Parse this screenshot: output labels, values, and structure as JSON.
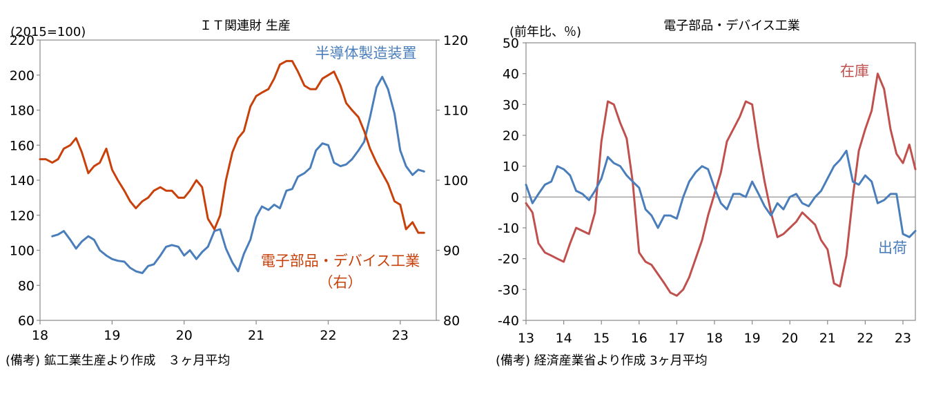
{
  "chart_data": [
    {
      "type": "line",
      "title": "ＩＴ関連財 生産",
      "unit_left": "(2015=100)",
      "note": "(備考) 鉱工業生産より作成　３ヶ月平均",
      "xticks": [
        "18",
        "19",
        "20",
        "21",
        "22",
        "23"
      ],
      "yticks_left": [
        "220",
        "200",
        "180",
        "160",
        "140",
        "120",
        "100",
        "80",
        "60"
      ],
      "yticks_right": [
        "120",
        "110",
        "100",
        "90",
        "80"
      ],
      "ylim_left": [
        60,
        220
      ],
      "ylim_right": [
        80,
        120
      ],
      "xlim": [
        2018.0,
        2023.5
      ],
      "colors": {
        "blue": "#4a7ebb",
        "red": "#c8410a",
        "axis": "#888888"
      },
      "series": [
        {
          "name": "半導体製造装置",
          "axis": "left",
          "color": "#4a7ebb",
          "x": [
            2018.17,
            2018.25,
            2018.33,
            2018.42,
            2018.5,
            2018.58,
            2018.67,
            2018.75,
            2018.83,
            2018.92,
            2019.0,
            2019.08,
            2019.17,
            2019.25,
            2019.33,
            2019.42,
            2019.5,
            2019.58,
            2019.67,
            2019.75,
            2019.83,
            2019.92,
            2020.0,
            2020.08,
            2020.17,
            2020.25,
            2020.33,
            2020.42,
            2020.5,
            2020.58,
            2020.67,
            2020.75,
            2020.83,
            2020.92,
            2021.0,
            2021.08,
            2021.17,
            2021.25,
            2021.33,
            2021.42,
            2021.5,
            2021.58,
            2021.67,
            2021.75,
            2021.83,
            2021.92,
            2022.0,
            2022.08,
            2022.17,
            2022.25,
            2022.33,
            2022.42,
            2022.5,
            2022.58,
            2022.67,
            2022.75,
            2022.83,
            2022.92,
            2023.0,
            2023.08,
            2023.17,
            2023.25,
            2023.33
          ],
          "values": [
            108,
            109,
            111,
            106,
            101,
            105,
            108,
            106,
            100,
            97,
            95,
            94,
            93.5,
            90,
            88,
            87,
            91,
            92,
            97,
            102,
            103,
            102,
            97,
            100,
            95,
            99,
            102,
            111,
            112,
            101,
            93,
            88,
            98,
            106,
            119,
            125,
            123,
            126,
            124,
            134,
            135,
            142,
            144,
            147,
            157,
            161,
            160,
            150,
            148,
            149,
            152,
            157,
            162,
            176,
            193,
            199,
            192,
            178,
            157,
            148,
            143,
            146,
            145
          ]
        },
        {
          "name": "電子部品・デバイス工業",
          "name_note": "（右）",
          "axis": "right",
          "color": "#c8410a",
          "x": [
            2018.0,
            2018.08,
            2018.17,
            2018.25,
            2018.33,
            2018.42,
            2018.5,
            2018.58,
            2018.67,
            2018.75,
            2018.83,
            2018.92,
            2019.0,
            2019.08,
            2019.17,
            2019.25,
            2019.33,
            2019.42,
            2019.5,
            2019.58,
            2019.67,
            2019.75,
            2019.83,
            2019.92,
            2020.0,
            2020.08,
            2020.17,
            2020.25,
            2020.33,
            2020.42,
            2020.5,
            2020.58,
            2020.67,
            2020.75,
            2020.83,
            2020.92,
            2021.0,
            2021.08,
            2021.17,
            2021.25,
            2021.33,
            2021.42,
            2021.5,
            2021.58,
            2021.67,
            2021.75,
            2021.83,
            2021.92,
            2022.0,
            2022.08,
            2022.17,
            2022.25,
            2022.33,
            2022.42,
            2022.5,
            2022.58,
            2022.67,
            2022.75,
            2022.83,
            2022.92,
            2023.0,
            2023.08,
            2023.17,
            2023.25,
            2023.33
          ],
          "values": [
            103,
            103,
            102.5,
            103,
            104.5,
            105,
            106,
            104,
            101,
            102,
            102.5,
            104.5,
            101.5,
            100,
            98.5,
            97,
            96,
            97,
            97.5,
            98.5,
            99,
            98.5,
            98.5,
            97.5,
            97.5,
            98.5,
            100,
            99,
            94.5,
            93,
            95,
            100,
            104,
            106,
            107,
            110.5,
            112,
            112.5,
            113,
            114.5,
            116.5,
            117,
            117,
            115.5,
            113.5,
            113,
            113,
            114.5,
            115,
            115.5,
            113.5,
            111,
            110,
            109,
            107,
            104.5,
            102.5,
            101,
            99.5,
            97,
            96.5,
            93,
            94,
            92.5,
            92.5
          ]
        }
      ]
    },
    {
      "type": "line",
      "title": "電子部品・デバイス工業",
      "unit_left": "(前年比、％)",
      "note": "(備考) 経済産業省より作成 3ヶ月平均",
      "xticks": [
        "13",
        "14",
        "15",
        "16",
        "17",
        "18",
        "19",
        "20",
        "21",
        "22",
        "23"
      ],
      "yticks_left": [
        "50",
        "40",
        "30",
        "20",
        "10",
        "0",
        "-10",
        "-20",
        "-30",
        "-40"
      ],
      "ylim_left": [
        -40,
        50
      ],
      "xlim": [
        2013.0,
        2023.33
      ],
      "colors": {
        "blue": "#4a7ebb",
        "red": "#c0504d",
        "zero": "#888888"
      },
      "series": [
        {
          "name": "在庫",
          "color": "#c0504d",
          "x": [
            2013.0,
            2013.17,
            2013.33,
            2013.5,
            2013.67,
            2013.83,
            2014.0,
            2014.17,
            2014.33,
            2014.5,
            2014.67,
            2014.83,
            2015.0,
            2015.17,
            2015.33,
            2015.5,
            2015.67,
            2015.83,
            2016.0,
            2016.17,
            2016.33,
            2016.5,
            2016.67,
            2016.83,
            2017.0,
            2017.17,
            2017.33,
            2017.5,
            2017.67,
            2017.83,
            2018.0,
            2018.17,
            2018.33,
            2018.5,
            2018.67,
            2018.83,
            2019.0,
            2019.17,
            2019.33,
            2019.5,
            2019.67,
            2019.83,
            2020.0,
            2020.17,
            2020.33,
            2020.5,
            2020.67,
            2020.83,
            2021.0,
            2021.17,
            2021.33,
            2021.5,
            2021.67,
            2021.83,
            2022.0,
            2022.17,
            2022.33,
            2022.5,
            2022.67,
            2022.83,
            2023.0,
            2023.17,
            2023.33
          ],
          "values": [
            -2,
            -5,
            -15,
            -18,
            -19,
            -20,
            -21,
            -15,
            -10,
            -11,
            -12,
            -5,
            18,
            31,
            30,
            24,
            19,
            5,
            -18,
            -21,
            -22,
            -25,
            -28,
            -31,
            -32,
            -30,
            -26,
            -20,
            -14,
            -6,
            1,
            8,
            18,
            22,
            26,
            31,
            30,
            16,
            5,
            -5,
            -13,
            -12,
            -10,
            -8,
            -5,
            -7,
            -9,
            -14,
            -17,
            -28,
            -29,
            -19,
            0,
            15,
            22,
            28,
            40,
            35,
            22,
            14,
            11,
            17,
            9
          ]
        },
        {
          "name": "出荷",
          "color": "#4a7ebb",
          "x": [
            2013.0,
            2013.17,
            2013.33,
            2013.5,
            2013.67,
            2013.83,
            2014.0,
            2014.17,
            2014.33,
            2014.5,
            2014.67,
            2014.83,
            2015.0,
            2015.17,
            2015.33,
            2015.5,
            2015.67,
            2015.83,
            2016.0,
            2016.17,
            2016.33,
            2016.5,
            2016.67,
            2016.83,
            2017.0,
            2017.17,
            2017.33,
            2017.5,
            2017.67,
            2017.83,
            2018.0,
            2018.17,
            2018.33,
            2018.5,
            2018.67,
            2018.83,
            2019.0,
            2019.17,
            2019.33,
            2019.5,
            2019.67,
            2019.83,
            2020.0,
            2020.17,
            2020.33,
            2020.5,
            2020.67,
            2020.83,
            2021.0,
            2021.17,
            2021.33,
            2021.5,
            2021.67,
            2021.83,
            2022.0,
            2022.17,
            2022.33,
            2022.5,
            2022.67,
            2022.83,
            2023.0,
            2023.17,
            2023.33
          ],
          "values": [
            4,
            -2,
            1,
            4,
            5,
            10,
            9,
            7,
            2,
            1,
            -1,
            2,
            6,
            13,
            11,
            10,
            7,
            5,
            3,
            -4,
            -6,
            -10,
            -6,
            -6,
            -7,
            0,
            5,
            8,
            10,
            9,
            3,
            -2,
            -4,
            1,
            1,
            0,
            5,
            1,
            -3,
            -6,
            -2,
            -4,
            0,
            1,
            -2,
            -3,
            0,
            2,
            6,
            10,
            12,
            15,
            5,
            4,
            7,
            5,
            -2,
            -1,
            1,
            1,
            -12,
            -13,
            -11
          ]
        }
      ]
    }
  ]
}
